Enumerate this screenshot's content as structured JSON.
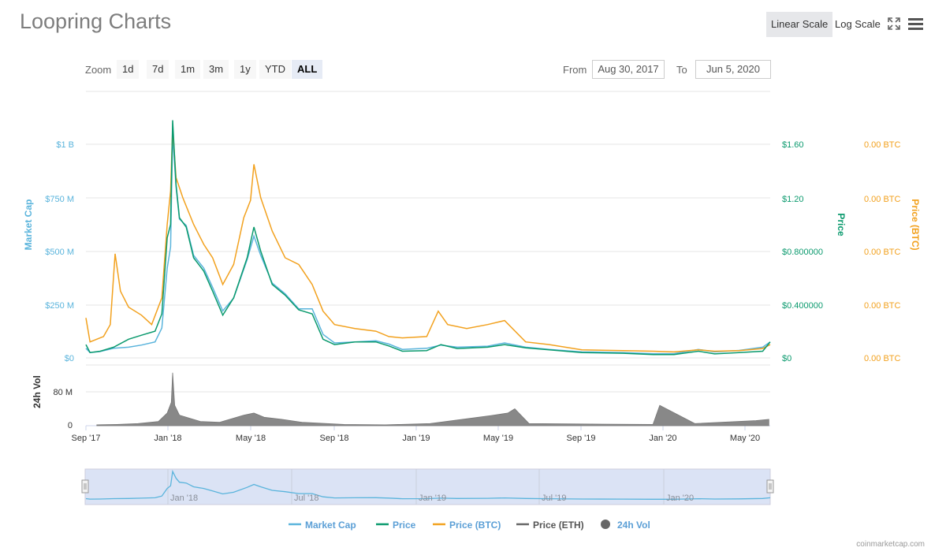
{
  "title": "Loopring Charts",
  "toolbar": {
    "linear_label": "Linear Scale",
    "log_label": "Log Scale",
    "fullscreen_icon": "fullscreen-icon",
    "menu_icon": "hamburger-menu-icon"
  },
  "zoom": {
    "label": "Zoom",
    "buttons": [
      "1d",
      "7d",
      "1m",
      "3m",
      "1y",
      "YTD",
      "ALL"
    ],
    "selected": "ALL"
  },
  "range": {
    "from_label": "From",
    "from_value": "Aug 30, 2017",
    "to_label": "To",
    "to_value": "Jun 5, 2020"
  },
  "colors": {
    "market_cap": "#5ab4dc",
    "price": "#0b9a6e",
    "price_btc": "#f2a11e",
    "price_eth": "#666666",
    "volume": "#888888"
  },
  "chart_data": {
    "type": "line",
    "x_range": [
      "2017-08-30",
      "2020-06-05"
    ],
    "x_ticks": [
      "Sep '17",
      "Jan '18",
      "May '18",
      "Sep '18",
      "Jan '19",
      "May '19",
      "Sep '19",
      "Jan '20",
      "May '20"
    ],
    "left_axis": {
      "label": "Market Cap",
      "ticks": [
        "$0",
        "$250 M",
        "$500 M",
        "$750 M",
        "$1 B"
      ]
    },
    "right_axis": {
      "label": "Price",
      "ticks": [
        "$0",
        "$0.400000",
        "$0.800000",
        "$1.20",
        "$1.60"
      ]
    },
    "btc_axis": {
      "label": "Price (BTC)",
      "ticks": [
        "0.00 BTC",
        "0.00 BTC",
        "0.00 BTC",
        "0.00 BTC",
        "0.00 BTC"
      ]
    },
    "volume_axis": {
      "label": "24h Vol",
      "ticks": [
        "0",
        "80 M"
      ]
    },
    "navigator_ticks": [
      "Jan '18",
      "Jul '18",
      "Jan '19",
      "Jul '19",
      "Jan '20"
    ],
    "legend": [
      "Market Cap",
      "Price",
      "Price (BTC)",
      "Price (ETH)",
      "24h Vol"
    ],
    "series": [
      {
        "name": "Market Cap",
        "unit": "USD M",
        "points": [
          [
            "2017-08-30",
            45
          ],
          [
            "2017-09-05",
            25
          ],
          [
            "2017-09-20",
            30
          ],
          [
            "2017-10-10",
            45
          ],
          [
            "2017-11-01",
            50
          ],
          [
            "2017-11-20",
            60
          ],
          [
            "2017-12-10",
            75
          ],
          [
            "2017-12-20",
            140
          ],
          [
            "2017-12-28",
            420
          ],
          [
            "2018-01-02",
            520
          ],
          [
            "2018-01-05",
            1050
          ],
          [
            "2018-01-10",
            800
          ],
          [
            "2018-01-15",
            650
          ],
          [
            "2018-01-25",
            620
          ],
          [
            "2018-02-05",
            480
          ],
          [
            "2018-02-20",
            420
          ],
          [
            "2018-03-05",
            330
          ],
          [
            "2018-03-20",
            220
          ],
          [
            "2018-04-05",
            280
          ],
          [
            "2018-04-25",
            460
          ],
          [
            "2018-05-05",
            570
          ],
          [
            "2018-05-15",
            480
          ],
          [
            "2018-06-01",
            350
          ],
          [
            "2018-06-20",
            300
          ],
          [
            "2018-07-10",
            230
          ],
          [
            "2018-07-30",
            230
          ],
          [
            "2018-08-15",
            110
          ],
          [
            "2018-09-01",
            70
          ],
          [
            "2018-10-01",
            75
          ],
          [
            "2018-11-01",
            80
          ],
          [
            "2018-11-20",
            65
          ],
          [
            "2018-12-10",
            40
          ],
          [
            "2019-01-15",
            45
          ],
          [
            "2019-02-05",
            60
          ],
          [
            "2019-03-01",
            50
          ],
          [
            "2019-04-15",
            55
          ],
          [
            "2019-05-10",
            70
          ],
          [
            "2019-06-10",
            50
          ],
          [
            "2019-07-15",
            40
          ],
          [
            "2019-09-01",
            28
          ],
          [
            "2019-11-01",
            25
          ],
          [
            "2019-12-15",
            20
          ],
          [
            "2020-01-15",
            20
          ],
          [
            "2020-02-20",
            40
          ],
          [
            "2020-03-15",
            28
          ],
          [
            "2020-04-20",
            35
          ],
          [
            "2020-05-25",
            50
          ],
          [
            "2020-06-05",
            75
          ]
        ]
      },
      {
        "name": "Price",
        "unit": "USD",
        "points": [
          [
            "2017-08-30",
            0.1
          ],
          [
            "2017-09-05",
            0.04
          ],
          [
            "2017-09-20",
            0.05
          ],
          [
            "2017-10-10",
            0.08
          ],
          [
            "2017-11-01",
            0.14
          ],
          [
            "2017-11-20",
            0.17
          ],
          [
            "2017-12-10",
            0.2
          ],
          [
            "2017-12-20",
            0.33
          ],
          [
            "2017-12-28",
            0.9
          ],
          [
            "2018-01-02",
            1.0
          ],
          [
            "2018-01-05",
            1.78
          ],
          [
            "2018-01-10",
            1.3
          ],
          [
            "2018-01-15",
            1.05
          ],
          [
            "2018-01-25",
            0.98
          ],
          [
            "2018-02-05",
            0.75
          ],
          [
            "2018-02-20",
            0.65
          ],
          [
            "2018-03-05",
            0.5
          ],
          [
            "2018-03-20",
            0.32
          ],
          [
            "2018-04-05",
            0.45
          ],
          [
            "2018-04-25",
            0.75
          ],
          [
            "2018-05-05",
            0.98
          ],
          [
            "2018-05-15",
            0.8
          ],
          [
            "2018-06-01",
            0.55
          ],
          [
            "2018-06-20",
            0.47
          ],
          [
            "2018-07-10",
            0.36
          ],
          [
            "2018-07-30",
            0.33
          ],
          [
            "2018-08-15",
            0.14
          ],
          [
            "2018-09-01",
            0.1
          ],
          [
            "2018-10-01",
            0.12
          ],
          [
            "2018-11-01",
            0.12
          ],
          [
            "2018-11-20",
            0.09
          ],
          [
            "2018-12-10",
            0.05
          ],
          [
            "2019-01-15",
            0.055
          ],
          [
            "2019-02-05",
            0.1
          ],
          [
            "2019-03-01",
            0.07
          ],
          [
            "2019-04-15",
            0.08
          ],
          [
            "2019-05-10",
            0.1
          ],
          [
            "2019-06-10",
            0.075
          ],
          [
            "2019-07-15",
            0.06
          ],
          [
            "2019-09-01",
            0.04
          ],
          [
            "2019-11-01",
            0.035
          ],
          [
            "2019-12-15",
            0.025
          ],
          [
            "2020-01-15",
            0.025
          ],
          [
            "2020-02-20",
            0.05
          ],
          [
            "2020-03-15",
            0.03
          ],
          [
            "2020-04-20",
            0.04
          ],
          [
            "2020-05-25",
            0.05
          ],
          [
            "2020-06-05",
            0.12
          ]
        ]
      },
      {
        "name": "Price (BTC)",
        "unit": "BTC",
        "points": [
          [
            "2017-08-30",
            0.3
          ],
          [
            "2017-09-05",
            0.12
          ],
          [
            "2017-09-25",
            0.16
          ],
          [
            "2017-10-05",
            0.25
          ],
          [
            "2017-10-12",
            0.78
          ],
          [
            "2017-10-20",
            0.5
          ],
          [
            "2017-11-01",
            0.38
          ],
          [
            "2017-11-20",
            0.32
          ],
          [
            "2017-12-05",
            0.25
          ],
          [
            "2017-12-20",
            0.45
          ],
          [
            "2017-12-28",
            1.0
          ],
          [
            "2018-01-02",
            1.25
          ],
          [
            "2018-01-05",
            1.72
          ],
          [
            "2018-01-10",
            1.35
          ],
          [
            "2018-01-20",
            1.2
          ],
          [
            "2018-02-05",
            1.0
          ],
          [
            "2018-02-20",
            0.85
          ],
          [
            "2018-03-05",
            0.75
          ],
          [
            "2018-03-20",
            0.55
          ],
          [
            "2018-04-05",
            0.7
          ],
          [
            "2018-04-20",
            1.05
          ],
          [
            "2018-04-30",
            1.18
          ],
          [
            "2018-05-05",
            1.45
          ],
          [
            "2018-05-15",
            1.2
          ],
          [
            "2018-06-01",
            0.95
          ],
          [
            "2018-06-20",
            0.75
          ],
          [
            "2018-07-10",
            0.7
          ],
          [
            "2018-07-30",
            0.55
          ],
          [
            "2018-08-15",
            0.35
          ],
          [
            "2018-09-01",
            0.25
          ],
          [
            "2018-10-01",
            0.22
          ],
          [
            "2018-11-01",
            0.2
          ],
          [
            "2018-11-20",
            0.16
          ],
          [
            "2018-12-10",
            0.15
          ],
          [
            "2019-01-15",
            0.16
          ],
          [
            "2019-02-01",
            0.35
          ],
          [
            "2019-02-15",
            0.25
          ],
          [
            "2019-03-15",
            0.22
          ],
          [
            "2019-04-15",
            0.25
          ],
          [
            "2019-05-10",
            0.28
          ],
          [
            "2019-06-10",
            0.12
          ],
          [
            "2019-07-15",
            0.1
          ],
          [
            "2019-09-01",
            0.06
          ],
          [
            "2019-11-01",
            0.055
          ],
          [
            "2019-12-15",
            0.05
          ],
          [
            "2020-01-15",
            0.045
          ],
          [
            "2020-02-20",
            0.06
          ],
          [
            "2020-03-15",
            0.05
          ],
          [
            "2020-04-20",
            0.055
          ],
          [
            "2020-05-25",
            0.07
          ],
          [
            "2020-06-05",
            0.1
          ]
        ]
      },
      {
        "name": "24h Vol",
        "unit": "USD M",
        "points": [
          [
            "2017-09-15",
            2
          ],
          [
            "2017-10-15",
            3
          ],
          [
            "2017-11-15",
            5
          ],
          [
            "2017-12-15",
            10
          ],
          [
            "2017-12-28",
            30
          ],
          [
            "2018-01-03",
            55
          ],
          [
            "2018-01-05",
            125
          ],
          [
            "2018-01-08",
            48
          ],
          [
            "2018-01-15",
            25
          ],
          [
            "2018-02-15",
            10
          ],
          [
            "2018-03-15",
            8
          ],
          [
            "2018-04-20",
            25
          ],
          [
            "2018-05-05",
            30
          ],
          [
            "2018-05-20",
            20
          ],
          [
            "2018-06-15",
            15
          ],
          [
            "2018-07-15",
            8
          ],
          [
            "2018-09-15",
            3
          ],
          [
            "2018-11-15",
            2
          ],
          [
            "2019-01-20",
            5
          ],
          [
            "2019-04-20",
            24
          ],
          [
            "2019-05-15",
            30
          ],
          [
            "2019-05-25",
            40
          ],
          [
            "2019-06-15",
            5
          ],
          [
            "2019-09-15",
            4
          ],
          [
            "2019-12-15",
            3
          ],
          [
            "2019-12-25",
            48
          ],
          [
            "2020-02-15",
            5
          ],
          [
            "2020-05-15",
            12
          ],
          [
            "2020-06-03",
            15
          ]
        ]
      }
    ]
  },
  "credit": "coinmarketcap.com"
}
